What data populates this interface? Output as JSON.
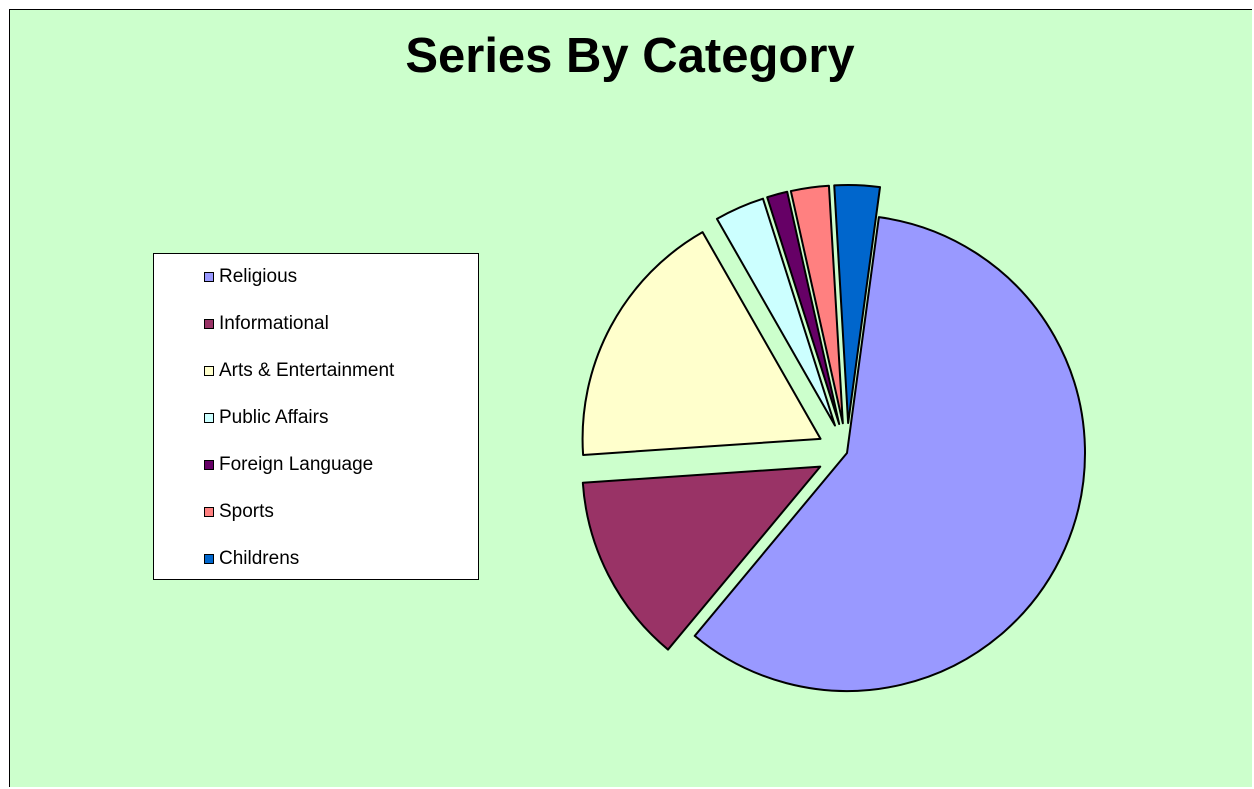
{
  "chart_data": {
    "type": "pie",
    "title": "Series By Category",
    "legend_position": "left",
    "exploded": true,
    "background_color": "#ccffcc",
    "categories": [
      "Religious",
      "Informational",
      "Arts & Entertainment",
      "Public Affairs",
      "Foreign Language",
      "Sports",
      "Childrens"
    ],
    "values": [
      59.5,
      13,
      18,
      3.4,
      1.4,
      2.6,
      3.1
    ],
    "colors": [
      "#9999ff",
      "#993366",
      "#ffffcc",
      "#ccffff",
      "#660066",
      "#ff8080",
      "#0066cc"
    ]
  }
}
